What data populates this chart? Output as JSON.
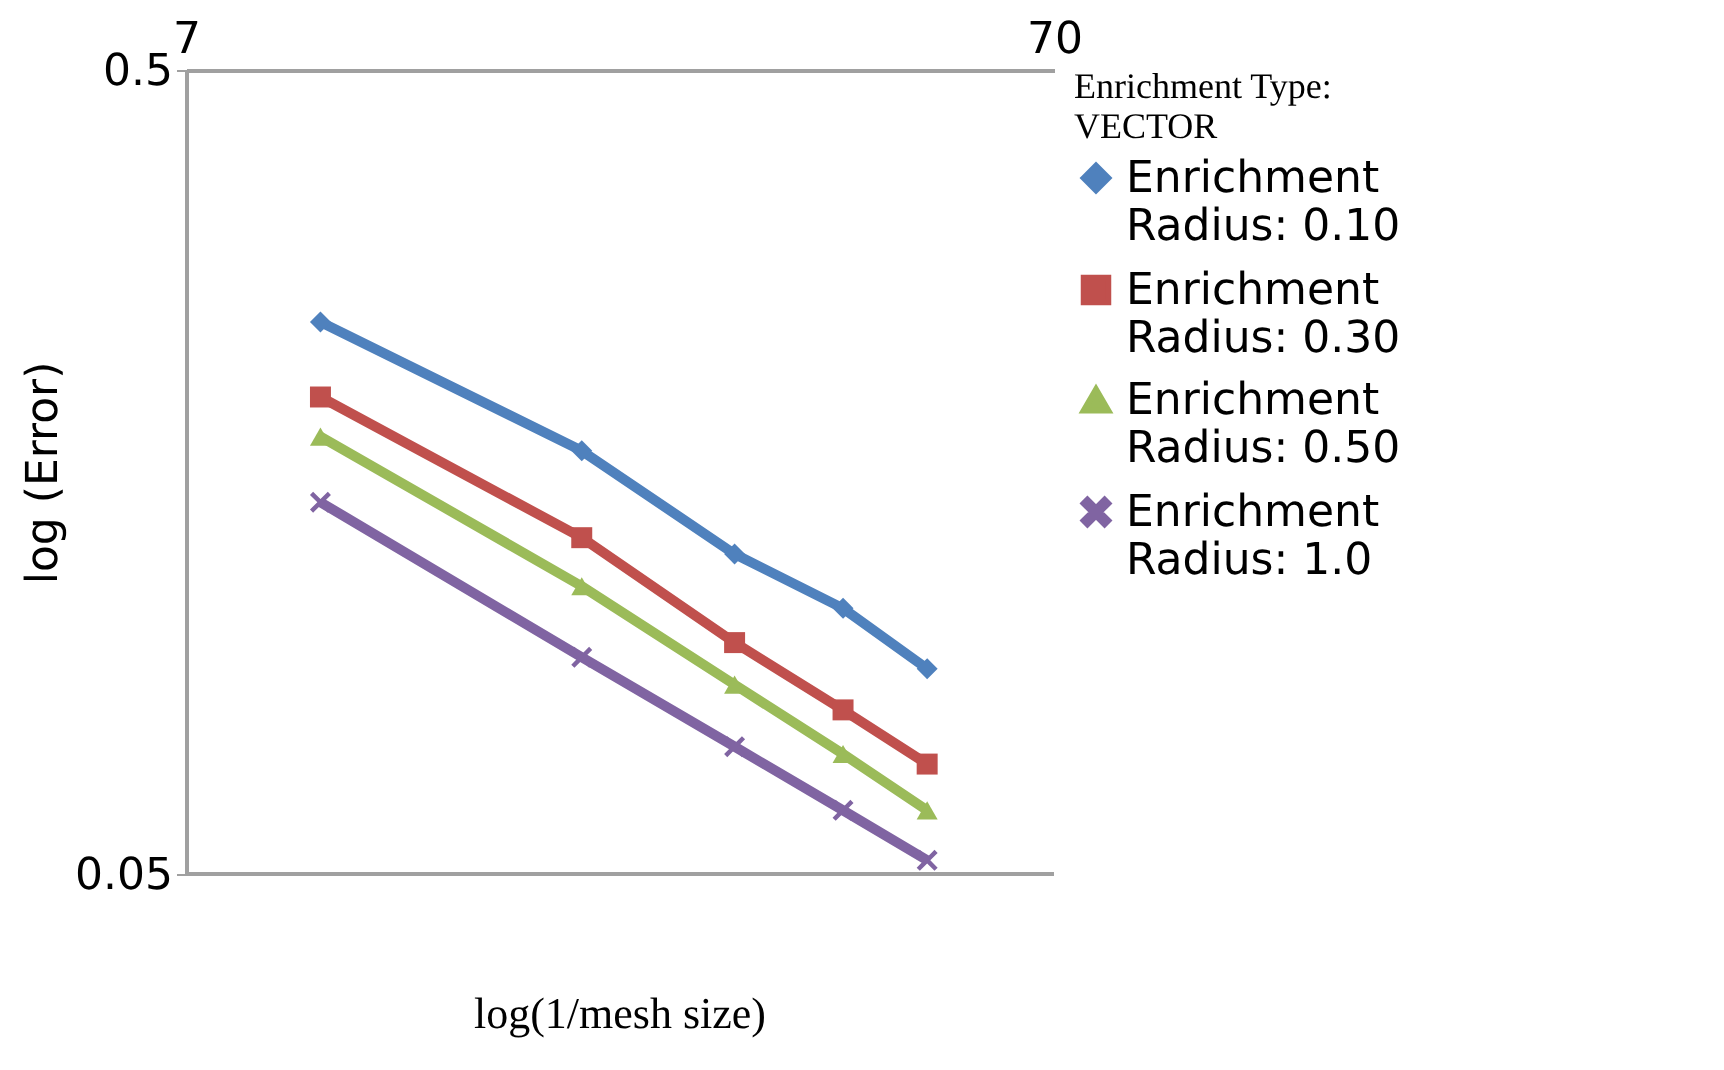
{
  "chart_data": {
    "type": "line",
    "xlabel": "log(1/mesh size)",
    "ylabel": "log (Error)",
    "legend_title": "Enrichment Type: VECTOR",
    "log": "xy",
    "xlim": [
      7,
      70
    ],
    "xticks": [
      7,
      70
    ],
    "ylim": [
      0.05,
      0.5
    ],
    "yticks": [
      0.05,
      0.5
    ],
    "grid": false,
    "legend": "right",
    "line_style": "solid",
    "x": [
      10,
      20,
      30,
      40,
      50
    ],
    "series": [
      {
        "name": "Enrichment Radius: 0.10",
        "color": "#4f81bd",
        "marker": "diamond",
        "values": [
          0.243,
          0.168,
          0.125,
          0.107,
          0.09
        ]
      },
      {
        "name": "Enrichment Radius: 0.30",
        "color": "#c0504d",
        "marker": "square",
        "values": [
          0.196,
          0.131,
          0.097,
          0.08,
          0.0685
        ]
      },
      {
        "name": "Enrichment Radius: 0.50",
        "color": "#9bbb59",
        "marker": "triangle",
        "values": [
          0.175,
          0.114,
          0.086,
          0.0705,
          0.06
        ]
      },
      {
        "name": "Enrichment Radius: 1.0",
        "color": "#8064a2",
        "marker": "cross",
        "values": [
          0.145,
          0.093,
          0.072,
          0.06,
          0.052
        ]
      }
    ]
  }
}
